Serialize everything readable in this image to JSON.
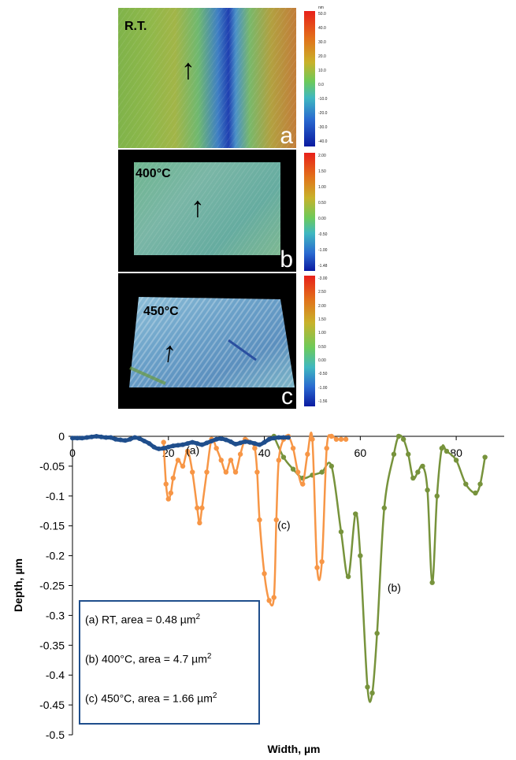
{
  "panels": [
    {
      "label": "R.T.",
      "letter": "a",
      "colorbar_ticks": [
        "50.0",
        "40.0",
        "30.0",
        "20.0",
        "10.0",
        "0.0",
        "-10.0",
        "-20.0",
        "-30.0",
        "-40.0"
      ],
      "colorbar_unit": "nm"
    },
    {
      "label": "400°C",
      "letter": "b",
      "colorbar_ticks": [
        "2.00",
        "1.50",
        "1.00",
        "0.50",
        "0.00",
        "-0.50",
        "-1.00",
        "-1.48"
      ]
    },
    {
      "label": "450°C",
      "letter": "c",
      "colorbar_ticks": [
        "-3.00",
        "2.50",
        "2.00",
        "1.50",
        "1.00",
        "0.50",
        "0.00",
        "-0.50",
        "-1.00",
        "-1.56"
      ]
    }
  ],
  "chart_data": {
    "type": "line",
    "xlabel": "Width, µm",
    "ylabel": "Depth, µm",
    "xlim": [
      0,
      90
    ],
    "ylim": [
      -0.5,
      0
    ],
    "x_ticks": [
      0,
      20,
      40,
      60,
      80
    ],
    "y_ticks": [
      0,
      -0.05,
      -0.1,
      -0.15,
      -0.2,
      -0.25,
      -0.3,
      -0.35,
      -0.4,
      -0.45,
      -0.5
    ],
    "y_tick_labels": [
      "0",
      "-0.05",
      "-0.1",
      "-0.15",
      "-0.2",
      "-0.25",
      "-0.3",
      "-0.35",
      "-0.4",
      "-0.45",
      "-0.5"
    ],
    "grid": false,
    "series": [
      {
        "label": "(a)",
        "color": "#1f4e8c",
        "x": [
          0,
          1,
          2,
          3,
          4,
          5,
          6,
          7,
          8,
          9,
          10,
          11,
          12,
          13,
          14,
          15,
          16,
          17,
          18,
          19,
          20,
          21,
          22,
          23,
          24,
          25,
          26,
          27,
          28,
          29,
          30,
          31,
          32,
          33,
          34,
          35,
          36,
          37,
          38,
          39,
          40,
          41,
          42,
          43,
          44,
          45
        ],
        "y": [
          -0.003,
          -0.003,
          -0.003,
          -0.002,
          -0.001,
          0,
          -0.001,
          -0.002,
          -0.002,
          -0.005,
          -0.006,
          -0.007,
          -0.005,
          -0.002,
          -0.004,
          -0.008,
          -0.012,
          -0.018,
          -0.021,
          -0.02,
          -0.018,
          -0.016,
          -0.015,
          -0.014,
          -0.012,
          -0.01,
          -0.012,
          -0.014,
          -0.011,
          -0.008,
          -0.005,
          -0.004,
          -0.006,
          -0.009,
          -0.013,
          -0.011,
          -0.009,
          -0.01,
          -0.012,
          -0.014,
          -0.01,
          -0.005,
          -0.003,
          -0.002,
          -0.002,
          -0.002
        ]
      },
      {
        "label": "(b)",
        "color": "#77933c",
        "x": [
          42,
          44,
          46,
          48,
          50,
          52,
          54,
          56,
          57.5,
          59,
          60,
          61.5,
          62.5,
          63.5,
          65,
          67,
          68,
          69,
          70,
          71,
          72,
          73,
          74,
          75,
          76,
          77,
          78,
          80,
          82,
          84,
          85,
          86
        ],
        "y": [
          0,
          -0.035,
          -0.055,
          -0.07,
          -0.065,
          -0.06,
          -0.05,
          -0.16,
          -0.235,
          -0.13,
          -0.2,
          -0.42,
          -0.43,
          -0.33,
          -0.12,
          -0.03,
          0,
          -0.005,
          -0.03,
          -0.07,
          -0.06,
          -0.05,
          -0.09,
          -0.245,
          -0.1,
          -0.02,
          -0.025,
          -0.04,
          -0.08,
          -0.095,
          -0.08,
          -0.035
        ]
      },
      {
        "label": "(c)",
        "color": "#f79646",
        "x": [
          19,
          19.5,
          20,
          20.5,
          21,
          22,
          23,
          24,
          25,
          26,
          26.5,
          27,
          28,
          29,
          30,
          31,
          32,
          33,
          34,
          35,
          36,
          37,
          38,
          38.5,
          39,
          40,
          41,
          42,
          42.5,
          43,
          44,
          45,
          46,
          47,
          48,
          49,
          50,
          51,
          52,
          53,
          54,
          55,
          56,
          57
        ],
        "y": [
          -0.01,
          -0.08,
          -0.105,
          -0.095,
          -0.07,
          -0.04,
          -0.05,
          -0.025,
          -0.06,
          -0.12,
          -0.145,
          -0.12,
          -0.06,
          -0.005,
          -0.02,
          -0.04,
          -0.06,
          -0.04,
          -0.06,
          -0.03,
          -0.005,
          -0.01,
          -0.02,
          -0.06,
          -0.14,
          -0.23,
          -0.275,
          -0.27,
          -0.14,
          -0.04,
          -0.005,
          0,
          -0.02,
          -0.06,
          -0.08,
          -0.03,
          -0.005,
          -0.22,
          -0.21,
          -0.02,
          0,
          -0.005,
          -0.005,
          -0.005
        ]
      }
    ],
    "annotations": [
      "(a)",
      "(b)",
      "(c)"
    ],
    "legend_box": {
      "lines": [
        {
          "prefix": "(a) RT, area  =  0.48  µm",
          "sup": "2"
        },
        {
          "prefix": "(b) 400°C, area  =  4.7  µm",
          "sup": "2"
        },
        {
          "prefix": "(c) 450°C, area  =  1.66  µm",
          "sup": "2"
        }
      ]
    }
  }
}
